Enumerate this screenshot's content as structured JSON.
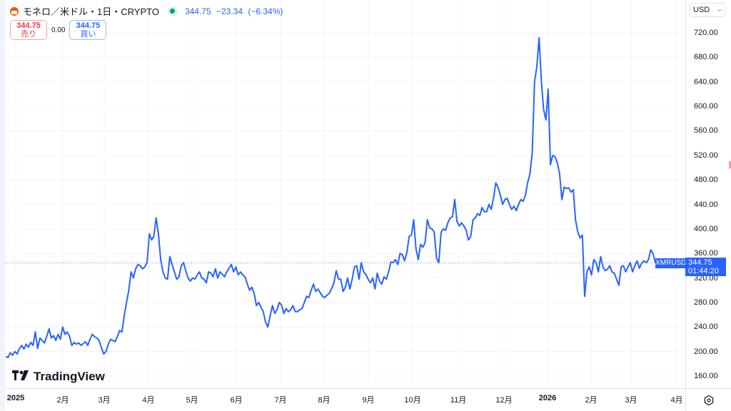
{
  "header": {
    "symbol_icon": "monero-icon",
    "title": "モネロ／米ドル・1日・CRYPTO",
    "market_status": "open",
    "last_price": "344.75",
    "change": "−23.34",
    "change_pct": "(−6.34%)"
  },
  "trade": {
    "sell_price": "344.75",
    "sell_label": "売り",
    "spread": "0.00",
    "buy_price": "344.75",
    "buy_label": "買い"
  },
  "price_axis": {
    "currency": "USD",
    "ticks": [
      "720.00",
      "680.00",
      "640.00",
      "600.00",
      "560.00",
      "520.00",
      "480.00",
      "440.00",
      "400.00",
      "360.00",
      "320.00",
      "280.00",
      "240.00",
      "200.00",
      "160.00"
    ],
    "last_symbol": "XMRUSD",
    "last_value": "344.75",
    "countdown": "01:44:20"
  },
  "time_axis": {
    "labels": [
      "2025",
      "2月",
      "3月",
      "4月",
      "5月",
      "6月",
      "7月",
      "8月",
      "9月",
      "10月",
      "11月",
      "12月",
      "2026",
      "2月",
      "3月",
      "4月"
    ]
  },
  "branding": {
    "logo_text": "TradingView",
    "logo_mark": "TV"
  },
  "colors": {
    "line": "#2962ff",
    "sell": "#f23645",
    "buy": "#2962ff",
    "up_dot": "#089981"
  },
  "chart_data": {
    "type": "line",
    "title": "モネロ／米ドル・1日・CRYPTO",
    "series": [
      {
        "name": "XMRUSD",
        "values": [
          192,
          190,
          198,
          194,
          200,
          196,
          205,
          210,
          204,
          212,
          207,
          215,
          210,
          232,
          205,
          222,
          218,
          214,
          225,
          237,
          222,
          226,
          218,
          228,
          220,
          240,
          228,
          232,
          225,
          210,
          215,
          212,
          214,
          210,
          213,
          216,
          210,
          220,
          228,
          224,
          222,
          218,
          206,
          196,
          200,
          212,
          220,
          218,
          216,
          225,
          234,
          232,
          258,
          280,
          300,
          330,
          320,
          335,
          342,
          340,
          335,
          338,
          345,
          392,
          382,
          388,
          418,
          392,
          350,
          330,
          320,
          318,
          355,
          342,
          330,
          318,
          322,
          340,
          345,
          332,
          320,
          315,
          320,
          318,
          325,
          330,
          320,
          318,
          312,
          330,
          328,
          322,
          335,
          320,
          330,
          326,
          322,
          330,
          336,
          342,
          330,
          338,
          325,
          330,
          325,
          322,
          310,
          300,
          305,
          295,
          275,
          280,
          272,
          265,
          248,
          240,
          258,
          275,
          262,
          268,
          280,
          276,
          262,
          270,
          265,
          268,
          275,
          265,
          265,
          268,
          270,
          280,
          290,
          288,
          300,
          310,
          298,
          302,
          296,
          290,
          288,
          292,
          295,
          303,
          312,
          332,
          318,
          318,
          298,
          305,
          320,
          302,
          318,
          338,
          340,
          318,
          345,
          330,
          326,
          318,
          312,
          320,
          302,
          328,
          315,
          310,
          322,
          318,
          330,
          346,
          345,
          350,
          342,
          360,
          358,
          348,
          362,
          388,
          390,
          415,
          368,
          350,
          375,
          370,
          378,
          415,
          402,
          400,
          395,
          352,
          345,
          395,
          400,
          398,
          410,
          418,
          420,
          448,
          412,
          405,
          410,
          405,
          398,
          382,
          388,
          415,
          418,
          425,
          422,
          435,
          428,
          428,
          440,
          432,
          450,
          475,
          468,
          455,
          440,
          448,
          450,
          440,
          432,
          437,
          430,
          440,
          448,
          445,
          455,
          476,
          490,
          525,
          640,
          665,
          712,
          640,
          595,
          578,
          628,
          505,
          520,
          518,
          508,
          490,
          448,
          468,
          466,
          467,
          460,
          464,
          415,
          395,
          385,
          390,
          290,
          330,
          338,
          325,
          350,
          345,
          330,
          355,
          338,
          332,
          334,
          340,
          330,
          328,
          318,
          308,
          338,
          340,
          330,
          338,
          345,
          330,
          340,
          348,
          336,
          344,
          348,
          345,
          350,
          366,
          360,
          344.75
        ]
      }
    ],
    "x_labels": [
      "2025",
      "2月",
      "3月",
      "4月",
      "5月",
      "6月",
      "7月",
      "8月",
      "9月",
      "10月",
      "11月",
      "12月",
      "2026",
      "2月",
      "3月",
      "4月"
    ],
    "ylabel": "USD",
    "ylim": [
      140,
      740
    ],
    "y_ticks": [
      160,
      200,
      240,
      280,
      320,
      360,
      400,
      440,
      480,
      520,
      560,
      600,
      640,
      680,
      720
    ],
    "last_value": 344.75,
    "grid": true
  }
}
